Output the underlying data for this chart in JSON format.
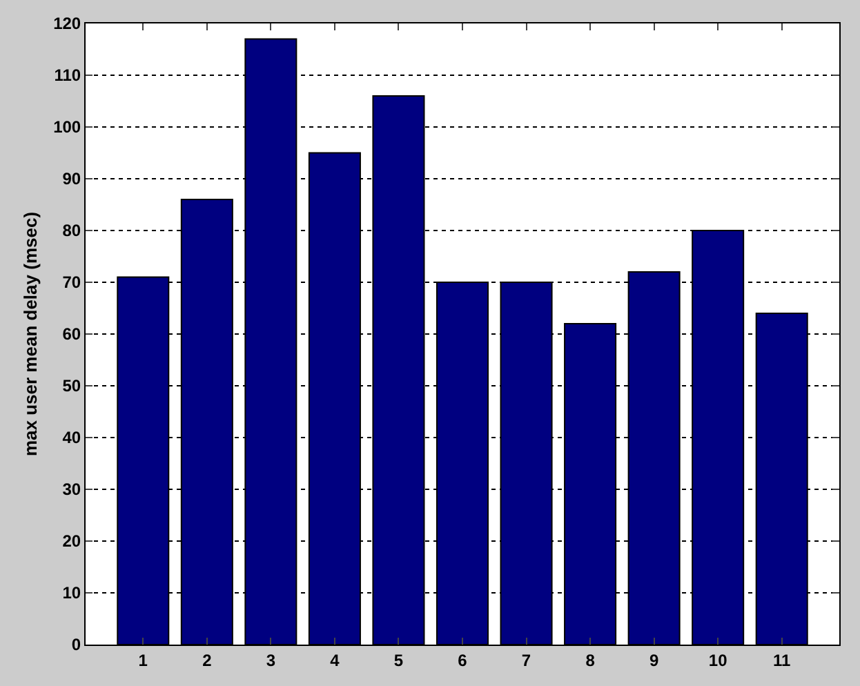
{
  "chart_data": {
    "type": "bar",
    "ylabel": "max user mean delay (msec)",
    "categories": [
      "1",
      "2",
      "3",
      "4",
      "5",
      "6",
      "7",
      "8",
      "9",
      "10",
      "11"
    ],
    "values": [
      71,
      86,
      117,
      95,
      106,
      70,
      70,
      62,
      72,
      80,
      64
    ],
    "color": "#000080",
    "ylim": [
      0,
      120
    ],
    "yticks": [
      0,
      10,
      20,
      30,
      40,
      50,
      60,
      70,
      80,
      90,
      100,
      110,
      120
    ],
    "grid": "y"
  }
}
